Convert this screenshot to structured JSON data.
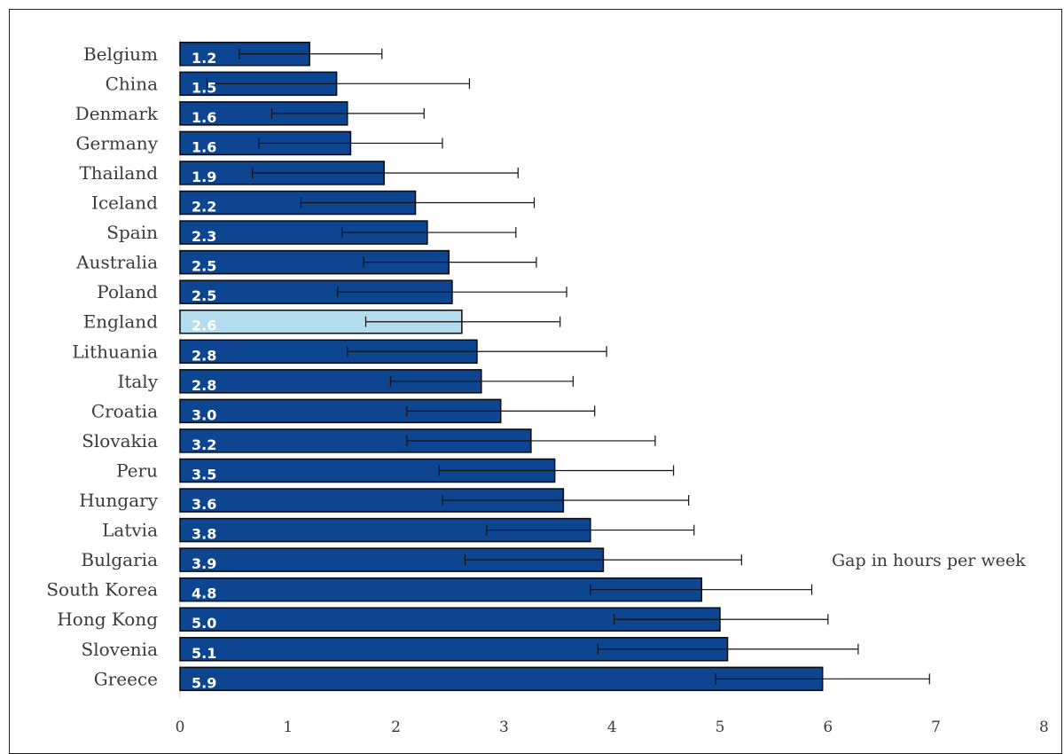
{
  "chart_data": {
    "type": "bar",
    "orientation": "horizontal",
    "categories": [
      "Belgium",
      "China",
      "Denmark",
      "Germany",
      "Thailand",
      "Iceland",
      "Spain",
      "Australia",
      "Poland",
      "England",
      "Lithuania",
      "Italy",
      "Croatia",
      "Slovakia",
      "Peru",
      "Hungary",
      "Latvia",
      "Bulgaria",
      "South Korea",
      "Hong Kong",
      "Slovenia",
      "Greece"
    ],
    "values": [
      1.2,
      1.45,
      1.55,
      1.58,
      1.89,
      2.18,
      2.29,
      2.49,
      2.52,
      2.61,
      2.75,
      2.79,
      2.97,
      3.25,
      3.47,
      3.55,
      3.8,
      3.92,
      4.83,
      5.0,
      5.07,
      5.95
    ],
    "value_labels": [
      "1.2",
      "1.5",
      "1.6",
      "1.6",
      "1.9",
      "2.2",
      "2.3",
      "2.5",
      "2.5",
      "2.6",
      "2.8",
      "2.8",
      "3.0",
      "3.2",
      "3.5",
      "3.6",
      "3.8",
      "3.9",
      "4.8",
      "5.0",
      "5.1",
      "5.9"
    ],
    "error_low": [
      0.55,
      0.25,
      0.85,
      0.73,
      0.67,
      1.12,
      1.5,
      1.7,
      1.46,
      1.72,
      1.55,
      1.95,
      2.1,
      2.1,
      2.4,
      2.43,
      2.84,
      2.64,
      3.8,
      4.02,
      3.87,
      4.96
    ],
    "error_high": [
      1.87,
      2.68,
      2.26,
      2.43,
      3.13,
      3.28,
      3.11,
      3.3,
      3.58,
      3.52,
      3.95,
      3.64,
      3.84,
      4.4,
      4.57,
      4.71,
      4.76,
      5.2,
      5.85,
      6.0,
      6.28,
      6.94
    ],
    "highlight_category": "England",
    "xlim": [
      0,
      8
    ],
    "xticks": [
      "0",
      "1",
      "2",
      "3",
      "4",
      "5",
      "6",
      "7",
      "8"
    ],
    "annotation": "Gap in hours per week",
    "colors": {
      "bar": "#0d4591",
      "highlight": "#b3dcef",
      "outline": "#0a0a0a",
      "error": "#111111"
    },
    "grid": false,
    "legend": false
  }
}
